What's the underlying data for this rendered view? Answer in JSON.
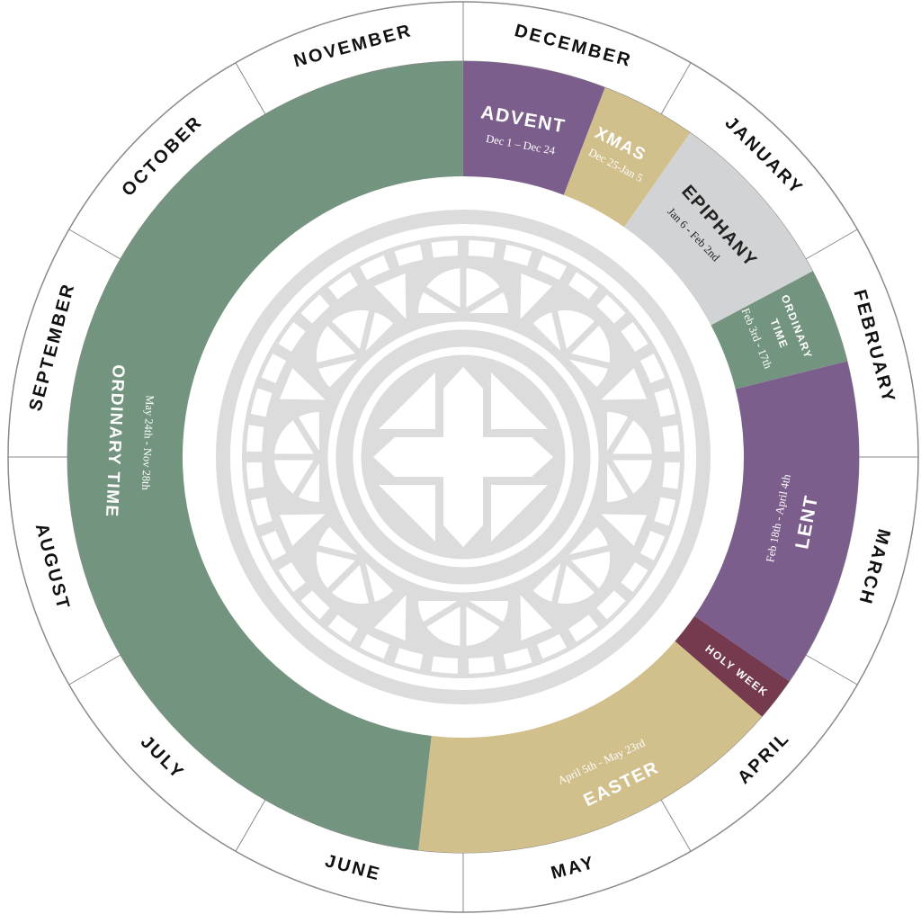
{
  "months": [
    "DECEMBER",
    "JANUARY",
    "FEBRUARY",
    "MARCH",
    "APRIL",
    "MAY",
    "JUNE",
    "JULY",
    "AUGUST",
    "SEPTEMBER",
    "OCTOBER",
    "NOVEMBER"
  ],
  "seasons": [
    {
      "id": "advent",
      "name": "ADVENT",
      "dates": "Dec 1 – Dec 24",
      "color": "#7b5e8c"
    },
    {
      "id": "xmas",
      "name": "XMAS",
      "dates": "Dec 25-Jan 5",
      "color": "#d1bf8c"
    },
    {
      "id": "epiphany",
      "name": "EPIPHANY",
      "dates": "Jan 6 - Feb 2nd",
      "color": "#d2d3d5"
    },
    {
      "id": "ordinary-winter",
      "name_lines": [
        "ORDINARY",
        "TIME"
      ],
      "dates": "Feb 3rd - 17th",
      "color": "#73947f"
    },
    {
      "id": "lent",
      "name": "LENT",
      "dates": "Feb 18th - April 4th",
      "color": "#7b5e8c"
    },
    {
      "id": "holy-week",
      "name": "HOLY WEEK",
      "color": "#763a4e"
    },
    {
      "id": "easter",
      "name": "EASTER",
      "dates": "April 5th - May 23rd",
      "color": "#d1bf8c"
    },
    {
      "id": "ordinary-summer",
      "name": "ORDINARY TIME",
      "dates": "May 24th - Nov 28th",
      "color": "#73947f"
    }
  ],
  "colors": {
    "rose_window": "#dcdcdc",
    "month_text": "#111111",
    "ring_stroke": "#8a8a8a",
    "light_text": "#ffffff",
    "dark_text": "#222222"
  },
  "center_icon": "cross-rose-window-icon"
}
